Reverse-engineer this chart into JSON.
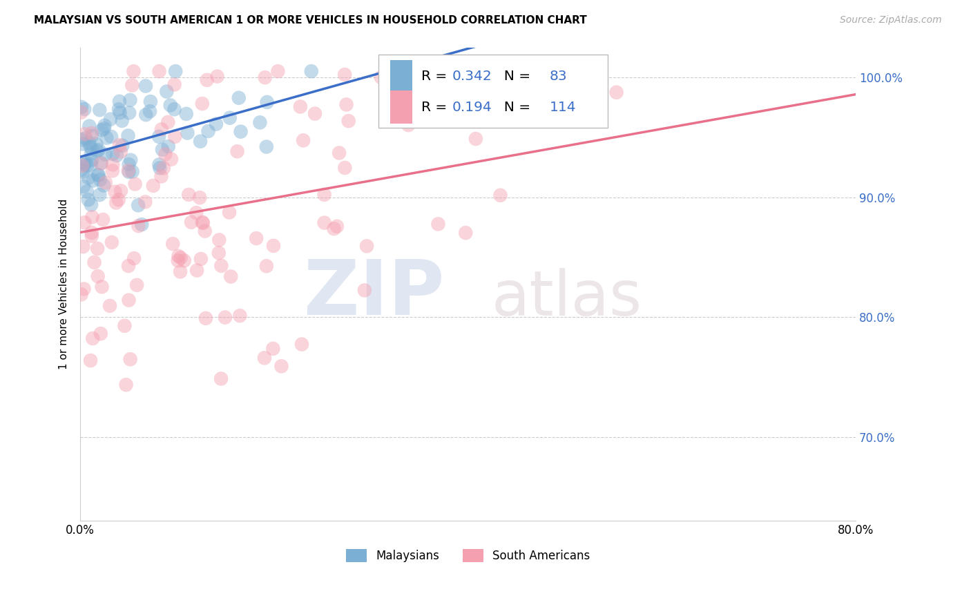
{
  "title": "MALAYSIAN VS SOUTH AMERICAN 1 OR MORE VEHICLES IN HOUSEHOLD CORRELATION CHART",
  "source": "Source: ZipAtlas.com",
  "ylabel": "1 or more Vehicles in Household",
  "xlim": [
    0.0,
    0.8
  ],
  "ylim": [
    0.63,
    1.025
  ],
  "xtick_positions": [
    0.0,
    0.1,
    0.2,
    0.3,
    0.4,
    0.5,
    0.6,
    0.7,
    0.8
  ],
  "xticklabels": [
    "0.0%",
    "",
    "",
    "",
    "",
    "",
    "",
    "",
    "80.0%"
  ],
  "ytick_positions": [
    0.7,
    0.8,
    0.9,
    1.0
  ],
  "yticklabels": [
    "70.0%",
    "80.0%",
    "90.0%",
    "100.0%"
  ],
  "malaysian_R": 0.342,
  "malaysian_N": 83,
  "south_american_R": 0.194,
  "south_american_N": 114,
  "blue_color": "#7BAFD4",
  "pink_color": "#F4A0B0",
  "blue_line_color": "#3B6EC8",
  "pink_line_color": "#E8708A",
  "watermark_zip": "ZIP",
  "watermark_atlas": "atlas",
  "legend_blue_label": "Malaysians",
  "legend_pink_label": "South Americans",
  "legend_R_color": "black",
  "legend_val_color": "#3B6EC8",
  "grid_color": "#CCCCCC",
  "spine_color": "#CCCCCC"
}
